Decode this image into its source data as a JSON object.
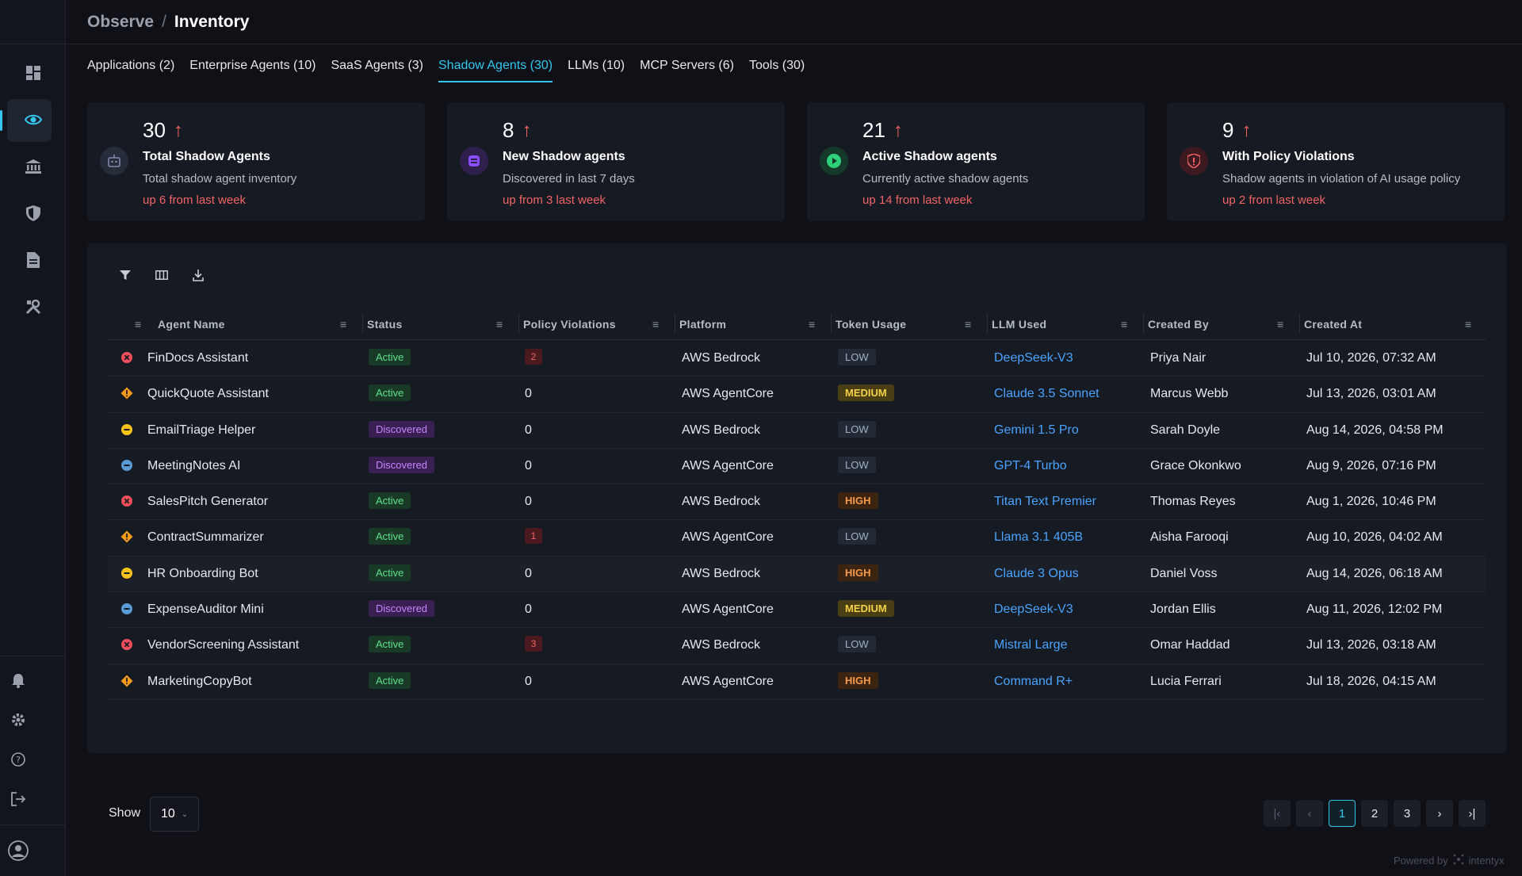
{
  "breadcrumb": {
    "parent": "Observe",
    "separator": "/",
    "current": "Inventory"
  },
  "tabs": [
    {
      "label": "Applications (2)",
      "active": false
    },
    {
      "label": "Enterprise Agents (10)",
      "active": false
    },
    {
      "label": "SaaS Agents (3)",
      "active": false
    },
    {
      "label": "Shadow Agents (30)",
      "active": true
    },
    {
      "label": "LLMs (10)",
      "active": false
    },
    {
      "label": "MCP Servers (6)",
      "active": false
    },
    {
      "label": "Tools (30)",
      "active": false
    }
  ],
  "cards": [
    {
      "value": "30",
      "title": "Total Shadow Agents",
      "subtitle": "Total shadow agent inventory",
      "trend": "up 6 from last week",
      "icon": "robot-icon",
      "icon_color": "#5b6b8c"
    },
    {
      "value": "8",
      "title": "New Shadow agents",
      "subtitle": "Discovered in last 7 days",
      "trend": "up from 3 last week",
      "icon": "new-agent-icon",
      "icon_color": "#8a4dff"
    },
    {
      "value": "21",
      "title": "Active Shadow agents",
      "subtitle": "Currently active shadow agents",
      "trend": "up 14 from last week",
      "icon": "play-icon",
      "icon_color": "#2ed17a"
    },
    {
      "value": "9",
      "title": "With Policy Violations",
      "subtitle": "Shadow agents in violation of AI usage policy",
      "trend": "up 2 from last week",
      "icon": "shield-alert-icon",
      "icon_color": "#f26464"
    }
  ],
  "table": {
    "columns": [
      "Agent Name",
      "Status",
      "Policy Violations",
      "Platform",
      "Token Usage",
      "LLM Used",
      "Created By",
      "Created At"
    ],
    "rows": [
      {
        "risk": "critical",
        "name": "FinDocs Assistant",
        "status": "Active",
        "violations": "2",
        "platform": "AWS Bedrock",
        "token": "LOW",
        "llm": "DeepSeek-V3",
        "created_by": "Priya Nair",
        "created_at": "Jul 10, 2026, 07:32 AM"
      },
      {
        "risk": "high",
        "name": "QuickQuote Assistant",
        "status": "Active",
        "violations": "0",
        "platform": "AWS AgentCore",
        "token": "MEDIUM",
        "llm": "Claude 3.5 Sonnet",
        "created_by": "Marcus Webb",
        "created_at": "Jul 13, 2026, 03:01 AM"
      },
      {
        "risk": "medium",
        "name": "EmailTriage Helper",
        "status": "Discovered",
        "violations": "0",
        "platform": "AWS Bedrock",
        "token": "LOW",
        "llm": "Gemini 1.5 Pro",
        "created_by": "Sarah Doyle",
        "created_at": "Aug 14, 2026, 04:58 PM"
      },
      {
        "risk": "low",
        "name": "MeetingNotes AI",
        "status": "Discovered",
        "violations": "0",
        "platform": "AWS AgentCore",
        "token": "LOW",
        "llm": "GPT-4 Turbo",
        "created_by": "Grace Okonkwo",
        "created_at": "Aug 9, 2026, 07:16 PM"
      },
      {
        "risk": "critical",
        "name": "SalesPitch Generator",
        "status": "Active",
        "violations": "0",
        "platform": "AWS Bedrock",
        "token": "HIGH",
        "llm": "Titan Text Premier",
        "created_by": "Thomas Reyes",
        "created_at": "Aug 1, 2026, 10:46 PM"
      },
      {
        "risk": "high",
        "name": "ContractSummarizer",
        "status": "Active",
        "violations": "1",
        "platform": "AWS AgentCore",
        "token": "LOW",
        "llm": "Llama 3.1 405B",
        "created_by": "Aisha Farooqi",
        "created_at": "Aug 10, 2026, 04:02 AM"
      },
      {
        "risk": "medium",
        "name": "HR Onboarding Bot",
        "status": "Active",
        "violations": "0",
        "platform": "AWS Bedrock",
        "token": "HIGH",
        "llm": "Claude 3 Opus",
        "created_by": "Daniel Voss",
        "created_at": "Aug 14, 2026, 06:18 AM"
      },
      {
        "risk": "low",
        "name": "ExpenseAuditor Mini",
        "status": "Discovered",
        "violations": "0",
        "platform": "AWS AgentCore",
        "token": "MEDIUM",
        "llm": "DeepSeek-V3",
        "created_by": "Jordan Ellis",
        "created_at": "Aug 11, 2026, 12:02 PM"
      },
      {
        "risk": "critical",
        "name": "VendorScreening Assistant",
        "status": "Active",
        "violations": "3",
        "platform": "AWS Bedrock",
        "token": "LOW",
        "llm": "Mistral Large",
        "created_by": "Omar Haddad",
        "created_at": "Jul 13, 2026, 03:18 AM"
      },
      {
        "risk": "high",
        "name": "MarketingCopyBot",
        "status": "Active",
        "violations": "0",
        "platform": "AWS AgentCore",
        "token": "HIGH",
        "llm": "Command R+",
        "created_by": "Lucia Ferrari",
        "created_at": "Jul 18, 2026, 04:15 AM"
      }
    ]
  },
  "risk_colors": {
    "critical": "#f0505a",
    "high": "#f59a1a",
    "medium": "#f5c21a",
    "low": "#5b9bd5"
  },
  "footer": {
    "show_label": "Show",
    "page_size": "10",
    "pages": [
      "1",
      "2",
      "3"
    ],
    "current_page": "1",
    "powered_by": "Powered by",
    "brand": "intentyx"
  }
}
